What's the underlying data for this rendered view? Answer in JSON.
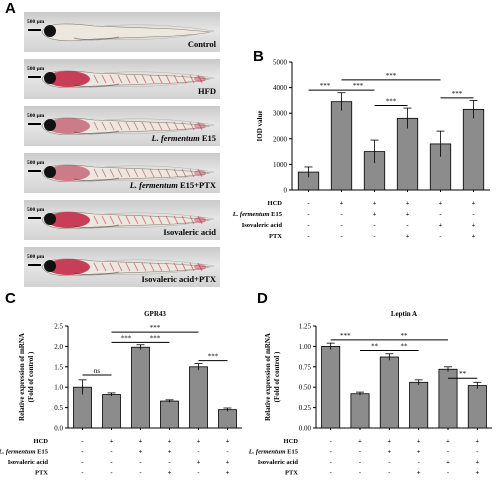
{
  "panels": {
    "a": "A",
    "b": "B",
    "c": "C",
    "d": "D"
  },
  "fish_images": [
    {
      "scale": "500 μm",
      "label": "Control",
      "stain": "none"
    },
    {
      "scale": "500 μm",
      "label": "HFD",
      "stain": "heavy"
    },
    {
      "scale": "500 μm",
      "label": "L. fermentum E15",
      "stain": "medium"
    },
    {
      "scale": "500 μm",
      "label": "L. fermentum E15+PTX",
      "stain": "medium"
    },
    {
      "scale": "500 μm",
      "label": "Isovaleric acid",
      "stain": "heavy"
    },
    {
      "scale": "500 μm",
      "label": "Isovaleric acid+PTX",
      "stain": "heavy"
    }
  ],
  "condition_rows": [
    {
      "label": "HCD",
      "signs": [
        "-",
        "+",
        "+",
        "+",
        "+",
        "+"
      ]
    },
    {
      "label": "L. fermentum E15",
      "signs": [
        "-",
        "-",
        "+",
        "+",
        "-",
        "-"
      ]
    },
    {
      "label": "Isovaleric acid",
      "signs": [
        "-",
        "-",
        "-",
        "-",
        "+",
        "+"
      ]
    },
    {
      "label": "PTX",
      "signs": [
        "-",
        "-",
        "-",
        "+",
        "-",
        "+"
      ]
    }
  ],
  "chart_data": [
    {
      "type": "bar",
      "panel": "B",
      "title": "",
      "ylabel": "IOD value",
      "ylim": [
        0,
        5000
      ],
      "yticks": [
        "0",
        "1000",
        "2000",
        "3000",
        "4000",
        "5000"
      ],
      "values": [
        700,
        3450,
        1500,
        2800,
        1800,
        3150
      ],
      "errors": [
        200,
        350,
        450,
        400,
        500,
        350
      ],
      "significance": [
        {
          "from": 0,
          "to": 1,
          "label": "***",
          "level": 3900
        },
        {
          "from": 1,
          "to": 2,
          "label": "***",
          "level": 3900
        },
        {
          "from": 1,
          "to": 4,
          "label": "***",
          "level": 4300
        },
        {
          "from": 2,
          "to": 3,
          "label": "***",
          "level": 3300
        },
        {
          "from": 4,
          "to": 5,
          "label": "***",
          "level": 3600
        }
      ]
    },
    {
      "type": "bar",
      "panel": "C",
      "title": "GPR43",
      "ylabel": "Relative expression of mRNA",
      "ylabel2": "(Fold of control )",
      "ylim": [
        0,
        2.5
      ],
      "yticks": [
        "0.0",
        "0.5",
        "1.0",
        "1.5",
        "2.0",
        "2.5"
      ],
      "values": [
        1.0,
        0.82,
        1.98,
        0.66,
        1.5,
        0.45
      ],
      "errors": [
        0.18,
        0.04,
        0.06,
        0.03,
        0.08,
        0.04
      ],
      "significance": [
        {
          "from": 0,
          "to": 1,
          "label": "ns",
          "level": 1.3
        },
        {
          "from": 1,
          "to": 2,
          "label": "***",
          "level": 2.1
        },
        {
          "from": 2,
          "to": 3,
          "label": "***",
          "level": 2.1
        },
        {
          "from": 1,
          "to": 4,
          "label": "***",
          "level": 2.35
        },
        {
          "from": 4,
          "to": 5,
          "label": "***",
          "level": 1.65
        }
      ]
    },
    {
      "type": "bar",
      "panel": "D",
      "title": "Leptin A",
      "ylabel": "Relative expression of mRNA",
      "ylabel2": "(Fold of control )",
      "ylim": [
        0,
        1.25
      ],
      "yticks": [
        "0.00",
        "0.25",
        "0.50",
        "0.75",
        "1.00",
        "1.25"
      ],
      "values": [
        1.0,
        0.42,
        0.87,
        0.56,
        0.72,
        0.52
      ],
      "errors": [
        0.04,
        0.02,
        0.04,
        0.03,
        0.03,
        0.04
      ],
      "significance": [
        {
          "from": 0,
          "to": 1,
          "label": "***",
          "level": 1.08
        },
        {
          "from": 1,
          "to": 2,
          "label": "**",
          "level": 0.95
        },
        {
          "from": 2,
          "to": 3,
          "label": "**",
          "level": 0.95
        },
        {
          "from": 1,
          "to": 4,
          "label": "**",
          "level": 1.08
        },
        {
          "from": 4,
          "to": 5,
          "label": "**",
          "level": 0.61
        }
      ]
    }
  ]
}
